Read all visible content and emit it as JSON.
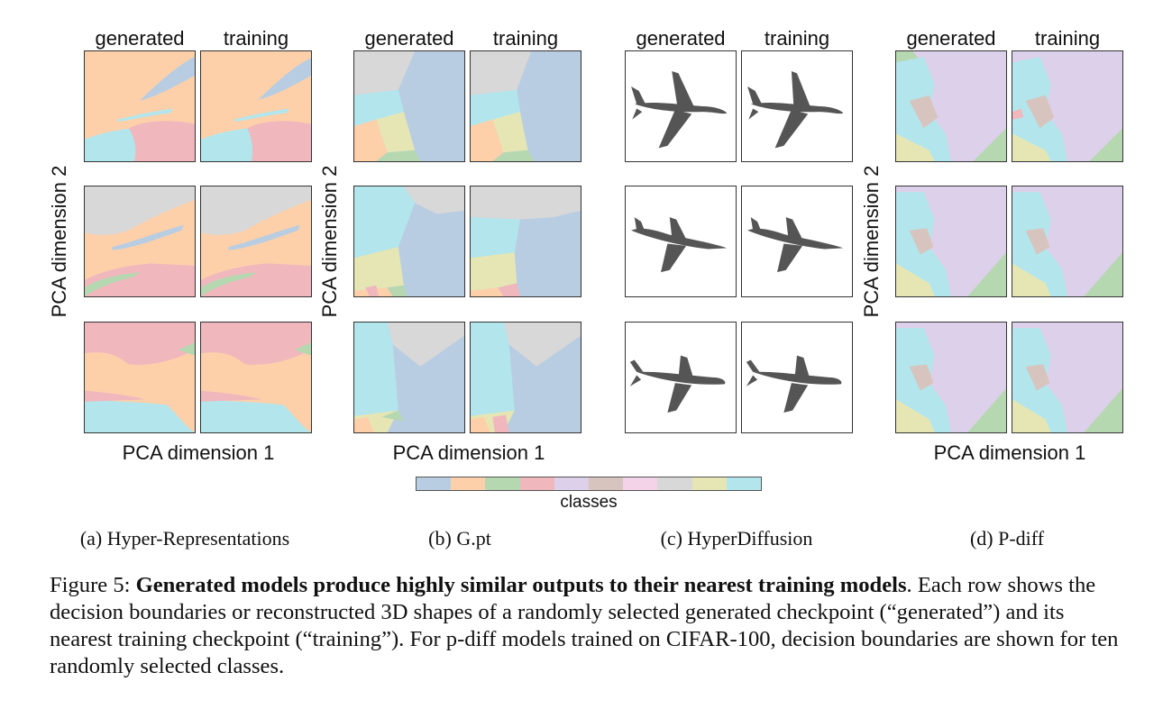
{
  "column_headers": {
    "generated": "generated",
    "training": "training"
  },
  "axis": {
    "y_label": "PCA dimension 2",
    "x_label": "PCA dimension 1"
  },
  "colorbar": {
    "label": "classes",
    "colors": [
      "#b8cde2",
      "#fdd0aa",
      "#b5d8b1",
      "#f0b7bd",
      "#ddd0ea",
      "#d7c4be",
      "#f4d3e9",
      "#d8d8d8",
      "#e6e6b5",
      "#b2e6ec"
    ]
  },
  "subcaptions": {
    "a": "(a) Hyper-Representations",
    "b": "(b) G.pt",
    "c": "(c) HyperDiffusion",
    "d": "(d) P-diff"
  },
  "caption": {
    "prefix": "Figure 5: ",
    "bold": "Generated models produce highly similar outputs to their nearest training models",
    "rest": ". Each row shows the decision boundaries or reconstructed 3D shapes of a randomly selected generated checkpoint (“generated”) and its nearest training checkpoint (“training”). For p-diff models trained on CIFAR-100, decision boundaries are shown for ten randomly selected classes."
  }
}
